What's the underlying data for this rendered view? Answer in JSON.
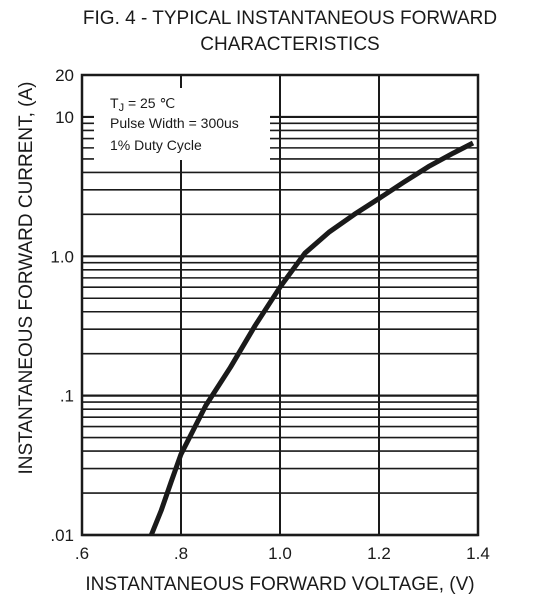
{
  "chart_data": {
    "type": "line",
    "title": "FIG. 4 - TYPICAL INSTANTANEOUS FORWARD CHARACTERISTICS",
    "title_lines": [
      "FIG. 4 - TYPICAL INSTANTANEOUS FORWARD",
      "CHARACTERISTICS"
    ],
    "xlabel": "INSTANTANEOUS FORWARD VOLTAGE, (V)",
    "ylabel": "INSTANTANEOUS FORWARD CURRENT, (A)",
    "xlim": [
      0.6,
      1.4
    ],
    "ylim": [
      0.01,
      20
    ],
    "yscale": "log",
    "grid": true,
    "x_ticks": [
      0.6,
      0.8,
      1.0,
      1.2,
      1.4
    ],
    "x_tick_labels": [
      ".6",
      ".8",
      "1.0",
      "1.2",
      "1.4"
    ],
    "y_ticks": [
      0.01,
      0.1,
      1.0,
      10,
      20
    ],
    "y_tick_labels": [
      ".01",
      ".1",
      "1.0",
      "10",
      "20"
    ],
    "annotations": {
      "temp_prefix": "T",
      "temp_sub": "J",
      "temp_rest": " = 25 ℃",
      "pulse": "Pulse Width = 300us",
      "duty": "1% Duty Cycle"
    },
    "series": [
      {
        "color": "#1a1a1a",
        "x": [
          0.74,
          0.76,
          0.78,
          0.8,
          0.85,
          0.9,
          0.95,
          1.0,
          1.05,
          1.1,
          1.15,
          1.2,
          1.25,
          1.3,
          1.35,
          1.39
        ],
        "y": [
          0.01,
          0.015,
          0.024,
          0.038,
          0.085,
          0.16,
          0.32,
          0.6,
          1.05,
          1.5,
          2.0,
          2.6,
          3.4,
          4.4,
          5.5,
          6.5
        ]
      }
    ]
  }
}
